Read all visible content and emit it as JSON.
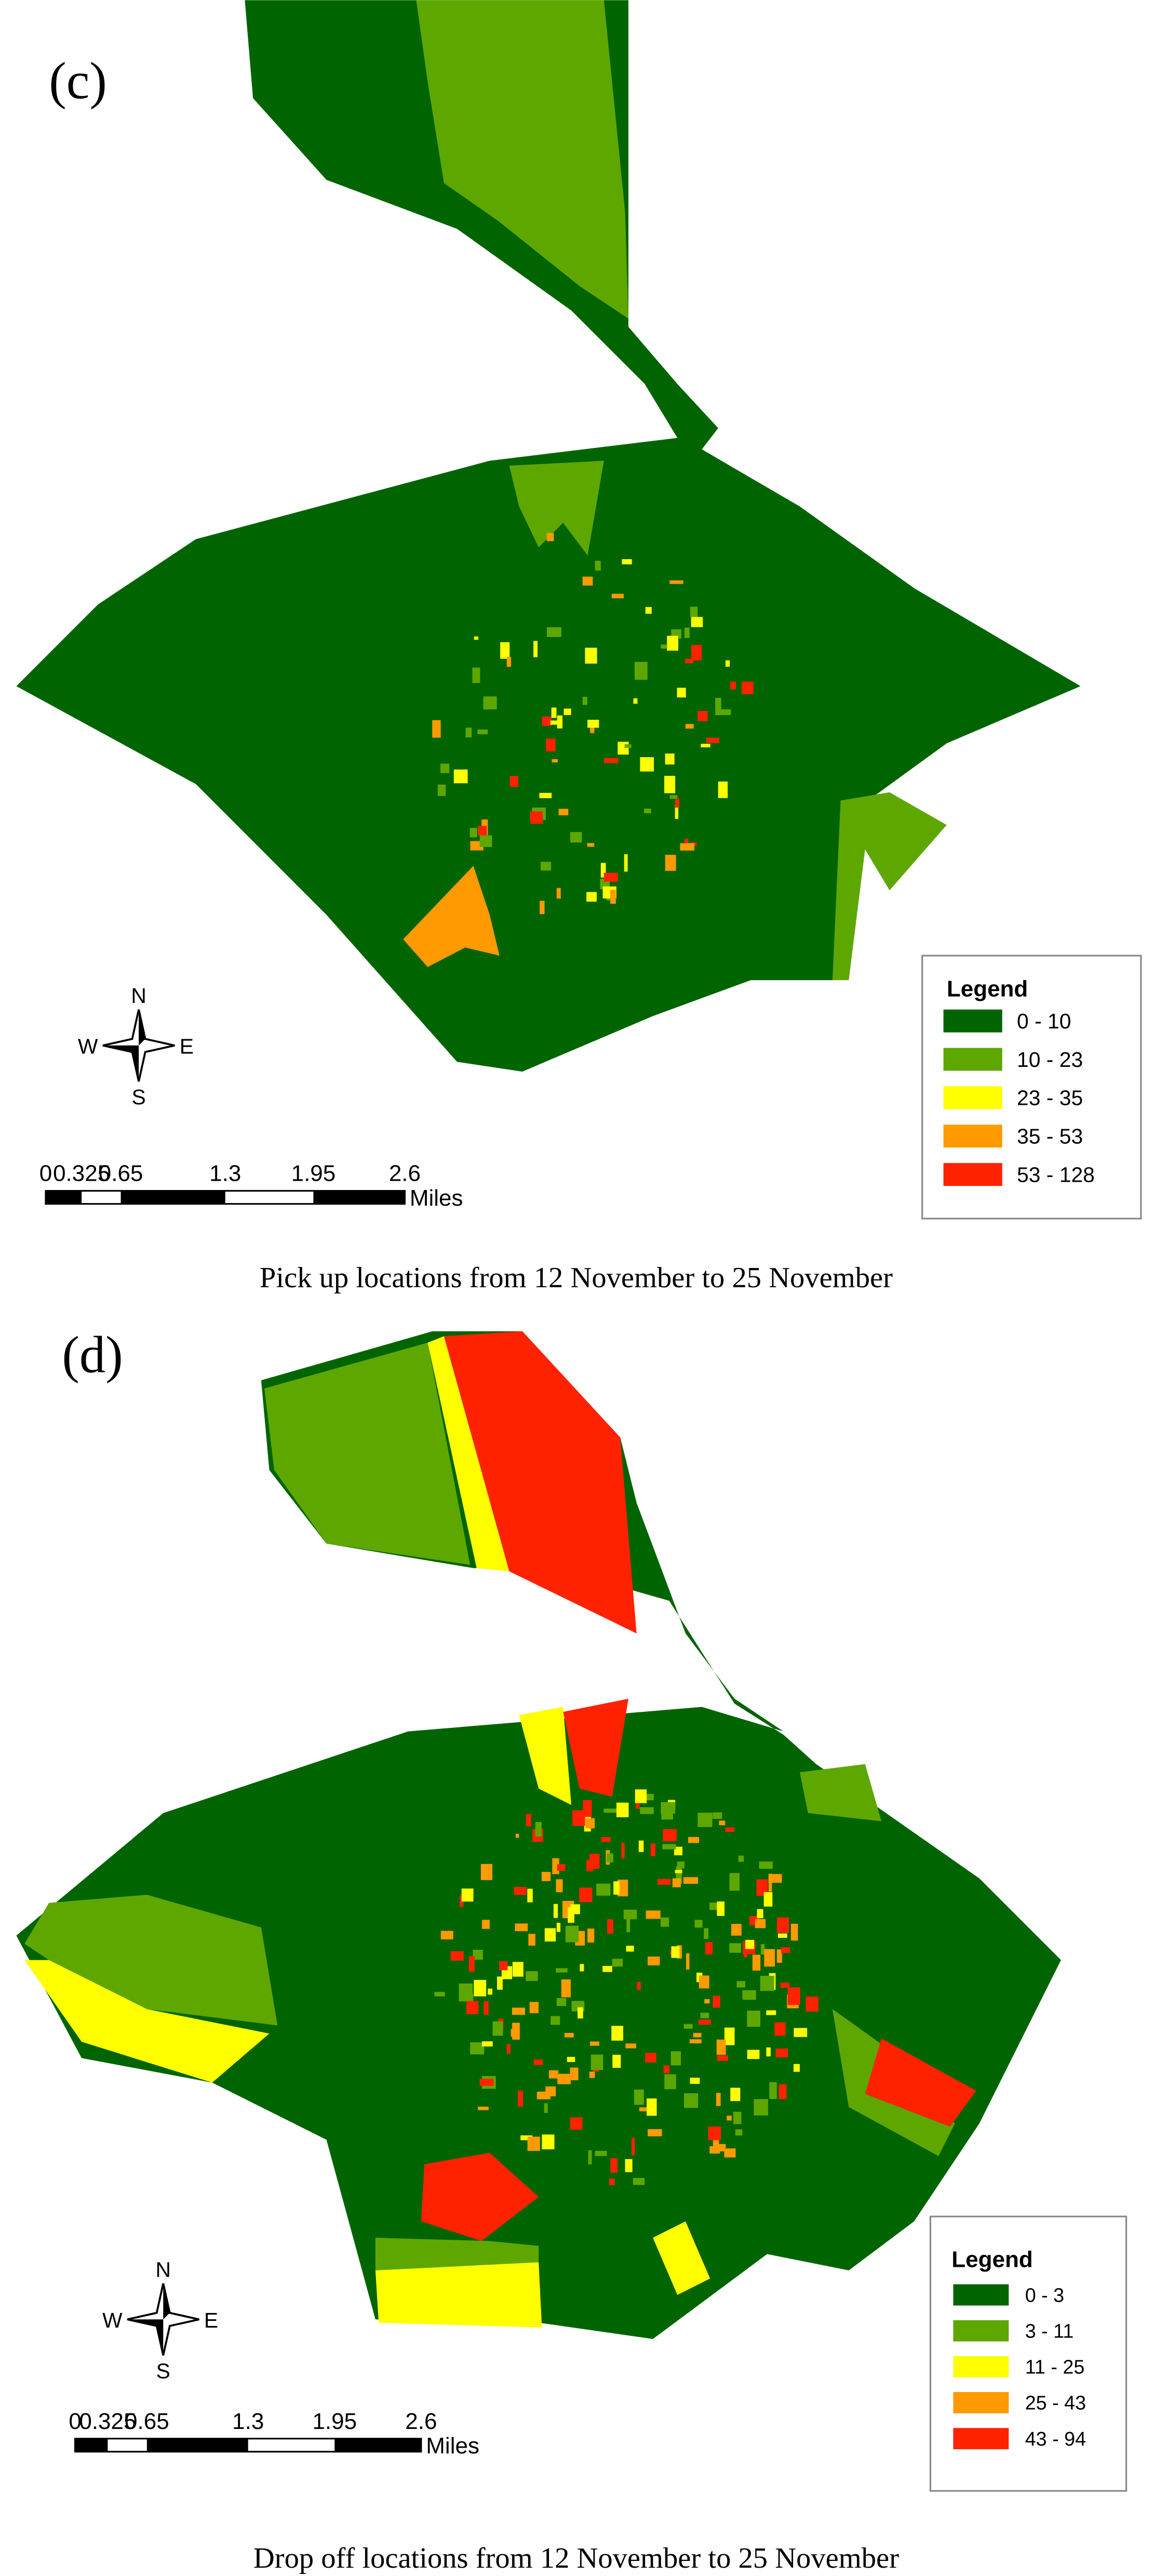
{
  "panels": [
    {
      "label": "(c)",
      "legend": {
        "title": "Legend",
        "items": [
          {
            "label": "0 - 10",
            "color": "#006400"
          },
          {
            "label": "10 - 23",
            "color": "#5ea700"
          },
          {
            "label": "23 - 35",
            "color": "#ffff00"
          },
          {
            "label": "35 - 53",
            "color": "#ff9a00"
          },
          {
            "label": "53 - 128",
            "color": "#ff2200"
          }
        ]
      },
      "compass": {
        "n": "N",
        "w": "W",
        "e": "E",
        "s": "S"
      },
      "scale": {
        "labels": [
          "0",
          "0.325",
          "0.65",
          "1.3",
          "1.95",
          "2.6"
        ],
        "unit": "Miles"
      },
      "caption": "Pick up locations from 12 November to 25 November"
    },
    {
      "label": "(d)",
      "legend": {
        "title": "Legend",
        "items": [
          {
            "label": "0 - 3",
            "color": "#006400"
          },
          {
            "label": "3 - 11",
            "color": "#5ea700"
          },
          {
            "label": "11 - 25",
            "color": "#ffff00"
          },
          {
            "label": "25 - 43",
            "color": "#ff9a00"
          },
          {
            "label": "43 - 94",
            "color": "#ff2200"
          }
        ]
      },
      "compass": {
        "n": "N",
        "w": "W",
        "e": "E",
        "s": "S"
      },
      "scale": {
        "labels": [
          "0",
          "0.325",
          "0.65",
          "1.3",
          "1.95",
          "2.6"
        ],
        "unit": "Miles"
      },
      "caption": "Drop off locations from 12 November to 25 November"
    }
  ]
}
